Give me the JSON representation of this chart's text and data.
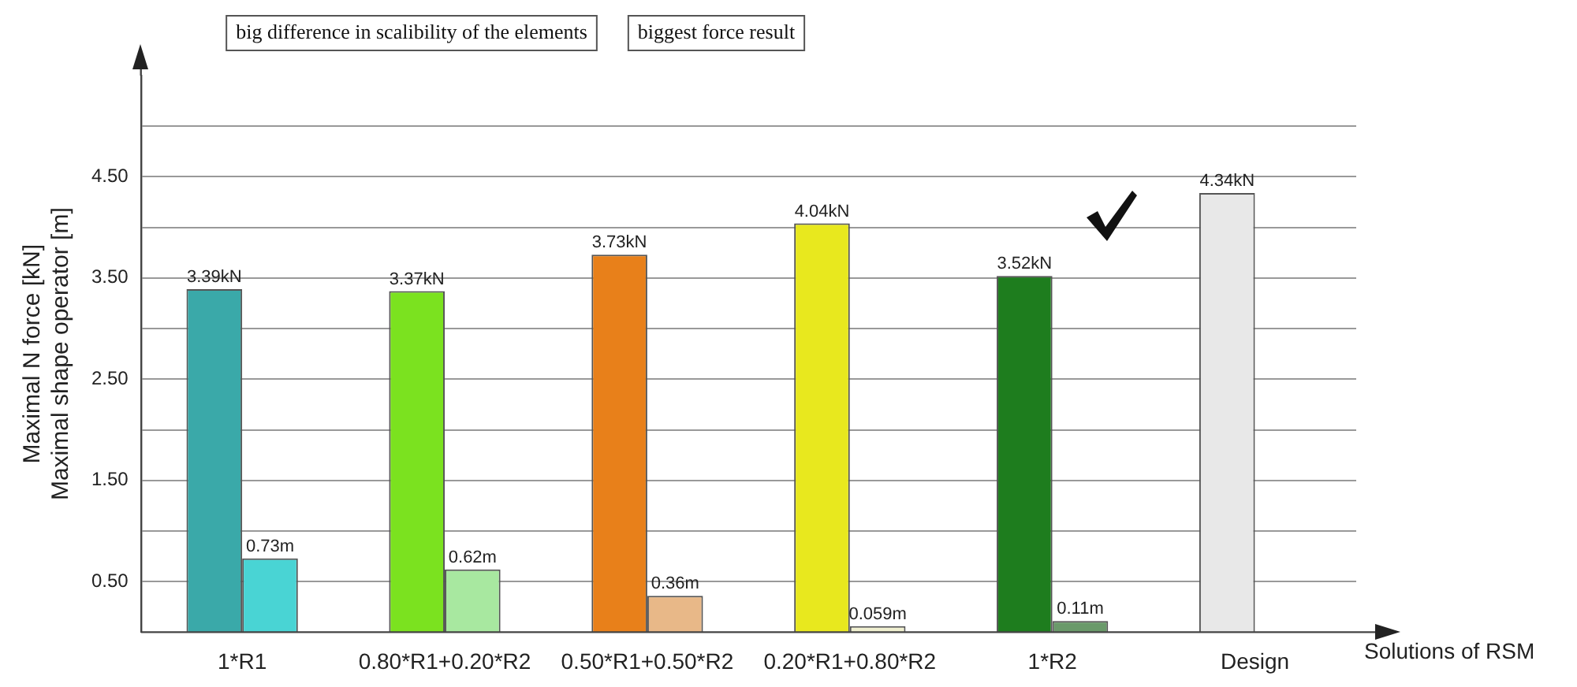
{
  "chart_data": {
    "type": "bar",
    "ylabel": "Maximal N force [kN]\nMaximal shape operator [m]",
    "xlabel": "Solutions of RSM",
    "categories": [
      "1*R1",
      "0.80*R1+0.20*R2",
      "0.50*R1+0.50*R2",
      "0.20*R1+0.80*R2",
      "1*R2",
      "Design"
    ],
    "series": [
      {
        "colors": [
          "#3aa9a9",
          "#7be21f",
          "#e8801a",
          "#e8e81e",
          "#1e7d1e",
          "#e8e8e8"
        ],
        "values": [
          3.39,
          3.37,
          3.73,
          4.04,
          3.52,
          4.34
        ],
        "value_labels": [
          "3.39kN",
          "3.37kN",
          "3.73kN",
          "4.04kN",
          "3.52kN",
          "4.34kN"
        ]
      },
      {
        "colors": [
          "#49d4d4",
          "#a8e8a0",
          "#e8b888",
          "#f0f0d0",
          "#6a9a6a",
          "#ffffff"
        ],
        "values": [
          0.73,
          0.62,
          0.36,
          0.059,
          0.11,
          null
        ],
        "value_labels": [
          "0.73m",
          "0.62m",
          "0.36m",
          "0.059m",
          "0.11m",
          null
        ]
      }
    ],
    "ylim": [
      0,
      5.5
    ],
    "yticks": [
      {
        "value": 0.5,
        "label": "0.50"
      },
      {
        "value": 1,
        "label": null
      },
      {
        "value": 1.5,
        "label": "1.50"
      },
      {
        "value": 2,
        "label": null
      },
      {
        "value": 2.5,
        "label": "2.50"
      },
      {
        "value": 3,
        "label": null
      },
      {
        "value": 3.5,
        "label": "3.50"
      },
      {
        "value": 4,
        "label": null
      },
      {
        "value": 4.5,
        "label": "4.50"
      },
      {
        "value": 5,
        "label": null
      }
    ],
    "grid": "y",
    "legend": false,
    "annotations": [
      "big difference in scalibility of the elements",
      "biggest force result"
    ]
  }
}
